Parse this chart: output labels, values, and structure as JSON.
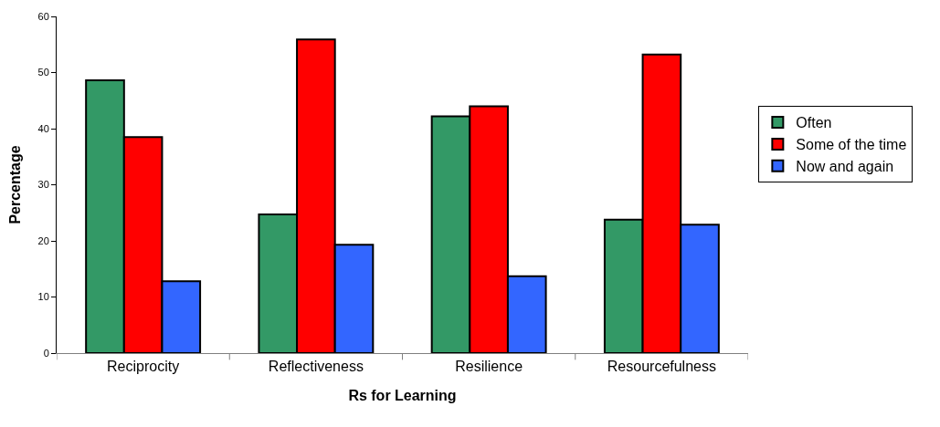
{
  "chart_data": {
    "type": "bar",
    "xlabel": "Rs for Learning",
    "ylabel": "Percentage",
    "categories": [
      "Reciprocity",
      "Reflectiveness",
      "Resilience",
      "Resourcefulness"
    ],
    "series": [
      {
        "name": "Often",
        "color": "#339966",
        "values": [
          48.6,
          24.7,
          42.2,
          23.8
        ]
      },
      {
        "name": "Some of the time",
        "color": "#ff0000",
        "values": [
          38.5,
          55.9,
          44.0,
          53.2
        ]
      },
      {
        "name": "Now and again",
        "color": "#3366ff",
        "values": [
          12.8,
          19.3,
          13.7,
          22.9
        ]
      }
    ],
    "ylim": [
      0,
      60
    ],
    "yticks": [
      0,
      10,
      20,
      30,
      40,
      50,
      60
    ],
    "legend": "right"
  }
}
